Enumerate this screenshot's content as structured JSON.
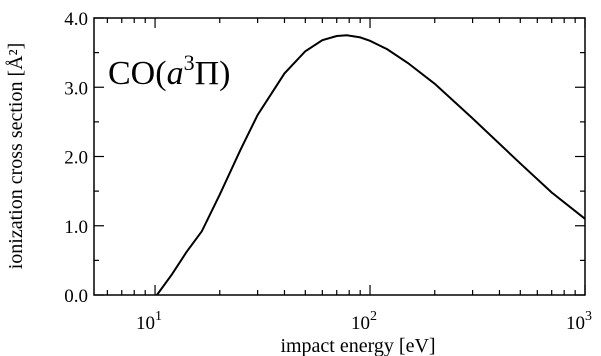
{
  "chart_data": {
    "type": "line",
    "title": "",
    "xlabel": "impact energy [eV]",
    "ylabel": "ionization cross section [Å²]",
    "xscale": "log",
    "xlim": [
      5.2,
      1000
    ],
    "ylim": [
      0,
      4.0
    ],
    "grid": false,
    "legend": "none",
    "annotation": {
      "prefix": "CO(",
      "var": "a",
      "sup": "3",
      "sym": "Π",
      "suffix": ")",
      "placement": "top-left"
    },
    "x_ticks": [
      {
        "value": 10,
        "base": "10",
        "exp": "1"
      },
      {
        "value": 100,
        "base": "10",
        "exp": "2"
      },
      {
        "value": 1000,
        "base": "10",
        "exp": "3"
      }
    ],
    "y_ticks": [
      {
        "value": 0,
        "label": "0.0"
      },
      {
        "value": 1,
        "label": "1.0"
      },
      {
        "value": 2,
        "label": "2.0"
      },
      {
        "value": 3,
        "label": "3.0"
      },
      {
        "value": 4,
        "label": "4.0"
      }
    ],
    "series": [
      {
        "x": [
          10.2,
          12,
          14,
          16.5,
          20,
          25,
          30,
          40,
          50,
          60,
          70,
          78,
          90,
          100,
          120,
          150,
          200,
          300,
          500,
          700,
          1000
        ],
        "y": [
          0.0,
          0.3,
          0.62,
          0.92,
          1.45,
          2.1,
          2.6,
          3.2,
          3.52,
          3.68,
          3.74,
          3.75,
          3.72,
          3.67,
          3.55,
          3.35,
          3.05,
          2.55,
          1.9,
          1.48,
          1.1
        ]
      }
    ]
  }
}
